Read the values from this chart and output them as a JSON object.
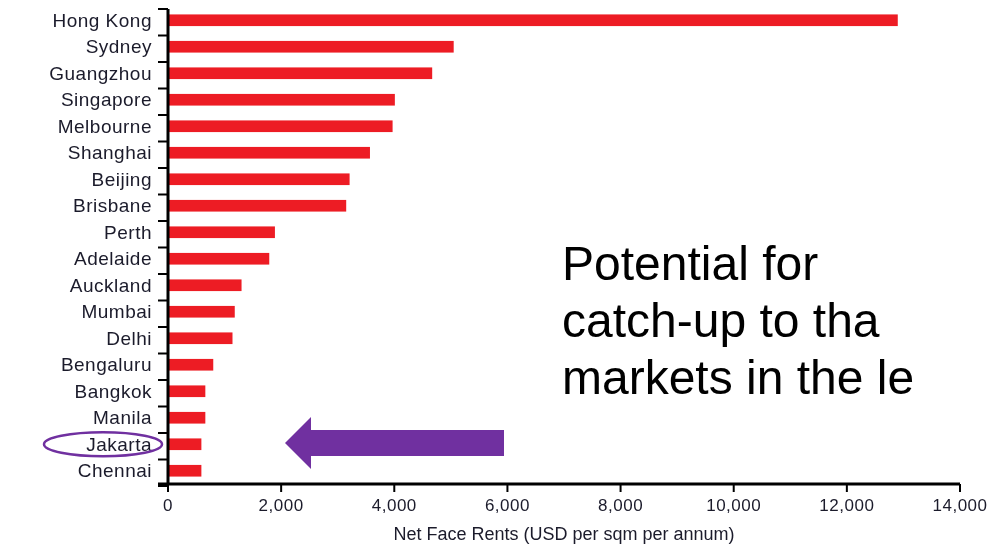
{
  "chart_data": {
    "type": "bar",
    "orientation": "horizontal",
    "xlabel": "Net Face Rents (USD per sqm per annum)",
    "categories": [
      "Hong Kong",
      "Sydney",
      "Guangzhou",
      "Singapore",
      "Melbourne",
      "Shanghai",
      "Beijing",
      "Brisbane",
      "Perth",
      "Adelaide",
      "Auckland",
      "Mumbai",
      "Delhi",
      "Bengaluru",
      "Bangkok",
      "Manila",
      "Jakarta",
      "Chennai"
    ],
    "values": [
      12900,
      5050,
      4670,
      4010,
      3970,
      3570,
      3210,
      3150,
      1890,
      1790,
      1300,
      1180,
      1140,
      800,
      660,
      660,
      590,
      590
    ],
    "color": "#ed1c24",
    "xlim": [
      0,
      14000
    ],
    "xticks": [
      {
        "value": 0,
        "label": "0"
      },
      {
        "value": 2000,
        "label": "2,000"
      },
      {
        "value": 4000,
        "label": "4,000"
      },
      {
        "value": 6000,
        "label": "6,000"
      },
      {
        "value": 8000,
        "label": "8,000"
      },
      {
        "value": 10000,
        "label": "10,000"
      },
      {
        "value": 12000,
        "label": "12,000"
      },
      {
        "value": 14000,
        "label": "14,000"
      }
    ],
    "annotations": [
      "Potential for\ncatch-up to tha\nmarkets in the le"
    ],
    "grid": false
  }
}
